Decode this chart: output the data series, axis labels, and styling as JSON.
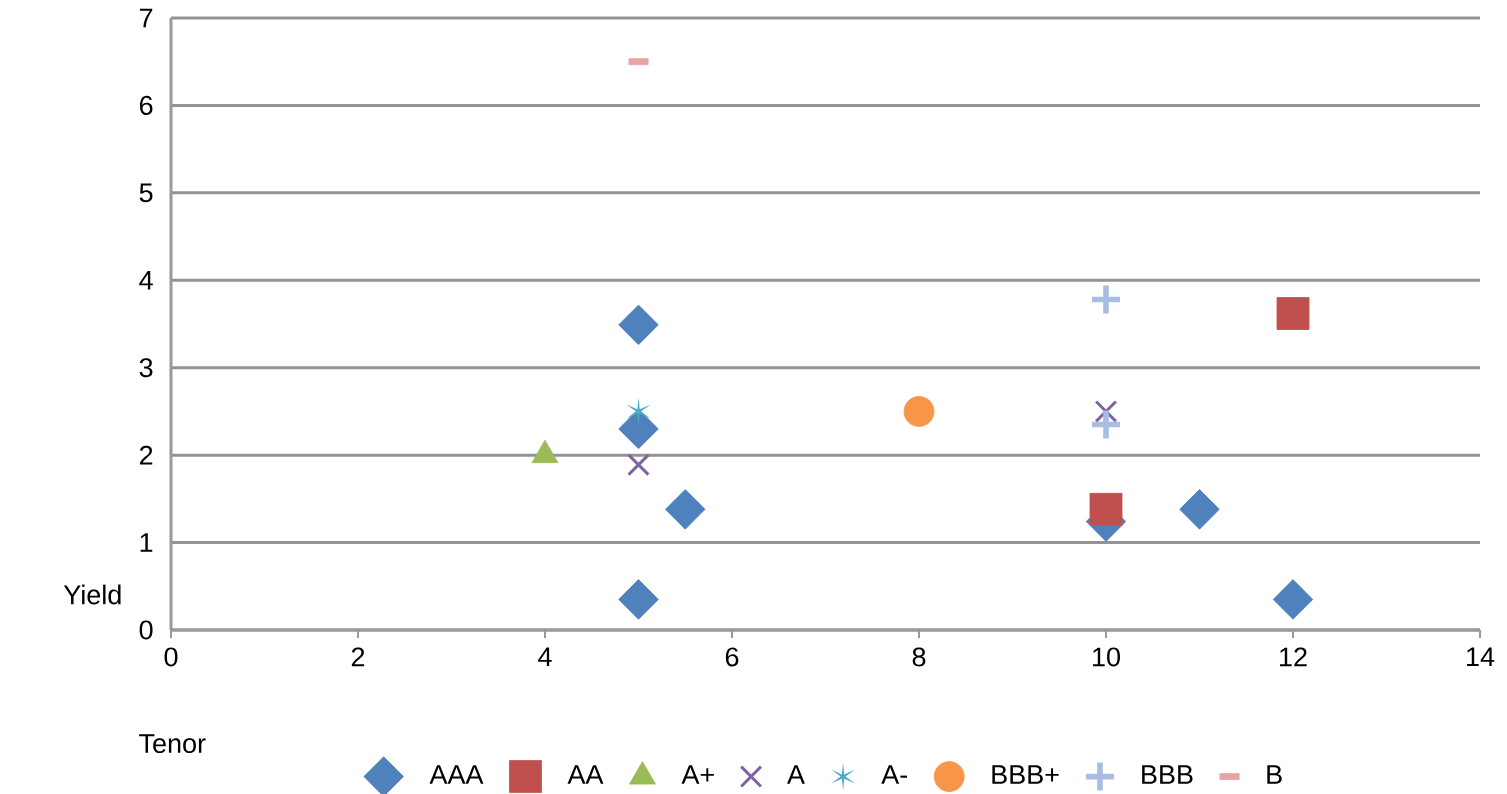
{
  "chart_data": {
    "type": "scatter",
    "xlabel": "Tenor",
    "ylabel": "Yield",
    "xlim": [
      0,
      14
    ],
    "ylim": [
      0,
      7
    ],
    "xticks": [
      0,
      2,
      4,
      6,
      8,
      10,
      12,
      14
    ],
    "yticks": [
      0,
      1,
      2,
      3,
      4,
      5,
      6,
      7
    ],
    "grid": "y",
    "legend": "bottom",
    "series": [
      {
        "name": "AAA",
        "color": "#4f81bd",
        "marker": "diamond",
        "x": [
          5,
          5,
          5.5,
          5,
          10,
          11,
          12
        ],
        "values": [
          3.49,
          2.3,
          1.38,
          0.35,
          1.24,
          1.38,
          0.35
        ]
      },
      {
        "name": "AA",
        "color": "#c0504d",
        "marker": "square",
        "x": [
          10,
          12
        ],
        "values": [
          1.38,
          3.62
        ]
      },
      {
        "name": "A+",
        "color": "#9bbb59",
        "marker": "triangle",
        "x": [
          4
        ],
        "values": [
          2.0
        ]
      },
      {
        "name": "A",
        "color": "#8064a2",
        "marker": "cross",
        "x": [
          5,
          10
        ],
        "values": [
          1.89,
          2.5
        ]
      },
      {
        "name": "A-",
        "color": "#4bacc6",
        "x": [
          5
        ],
        "values": [
          2.5
        ]
      },
      {
        "name": "BBB+",
        "color": "#f79646",
        "marker": "circle",
        "x": [
          8
        ],
        "values": [
          2.5
        ]
      },
      {
        "name": "BBB",
        "color": "#a7bde3",
        "x": [
          10,
          10
        ],
        "values": [
          3.78,
          2.35
        ]
      },
      {
        "name": "B",
        "color": "#e6a5a5",
        "x": [
          5
        ],
        "values": [
          6.5
        ]
      }
    ]
  }
}
